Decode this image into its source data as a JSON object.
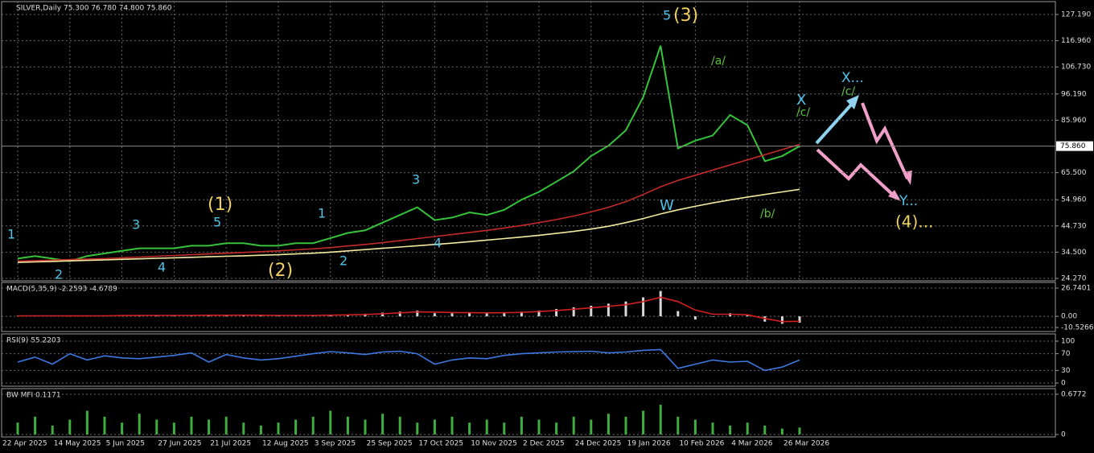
{
  "chart_data": [
    {
      "type": "line",
      "title": "SILVER,Daily  75.300 76.780 74.800 75.860",
      "ylim": [
        24.27,
        127.19
      ],
      "yticks": [
        {
          "value": 127.19,
          "label": "127.190"
        },
        {
          "value": 116.96,
          "label": "116.960"
        },
        {
          "value": 106.73,
          "label": "106.730"
        },
        {
          "value": 96.19,
          "label": "96.190"
        },
        {
          "value": 85.96,
          "label": "85.960"
        },
        {
          "value": 65.5,
          "label": "65.500"
        },
        {
          "value": 54.96,
          "label": "54.960"
        },
        {
          "value": 44.73,
          "label": "44.730"
        },
        {
          "value": 34.5,
          "label": "34.500"
        },
        {
          "value": 24.27,
          "label": "24.270"
        }
      ],
      "last_price": {
        "value": 75.86,
        "label": "75.860"
      },
      "grid": true,
      "series": [
        {
          "color": "#35c43a",
          "values": [
            32,
            33,
            32,
            31,
            33,
            34,
            35,
            36,
            36,
            36,
            37,
            37,
            38,
            38,
            37,
            37,
            38,
            38,
            40,
            42,
            43,
            46,
            49,
            52,
            47,
            48,
            50,
            49,
            51,
            55,
            58,
            62,
            66,
            72,
            76,
            82,
            95,
            115,
            75,
            78,
            80,
            88,
            84,
            70,
            72,
            75.86
          ]
        },
        {
          "color": "#c42a2a",
          "values": [
            31,
            31.2,
            31.4,
            31.6,
            31.8,
            32,
            32.3,
            32.6,
            32.9,
            33.2,
            33.5,
            33.8,
            34.1,
            34.4,
            34.7,
            35,
            35.4,
            35.8,
            36.3,
            36.9,
            37.5,
            38.2,
            39,
            39.8,
            40.6,
            41.4,
            42.2,
            43,
            43.9,
            44.9,
            46,
            47.2,
            48.6,
            50.2,
            52,
            54.2,
            57,
            60,
            62.5,
            64.5,
            66.5,
            68.5,
            70.5,
            72.5,
            74.5,
            76.5
          ]
        },
        {
          "color": "#f3eaa0",
          "values": [
            30.5,
            30.7,
            30.9,
            31.1,
            31.3,
            31.5,
            31.7,
            31.9,
            32.1,
            32.3,
            32.5,
            32.7,
            32.9,
            33.1,
            33.3,
            33.5,
            33.8,
            34.1,
            34.5,
            35,
            35.5,
            36,
            36.5,
            37,
            37.5,
            38,
            38.6,
            39.2,
            39.8,
            40.4,
            41.1,
            41.8,
            42.6,
            43.5,
            44.6,
            46,
            47.6,
            49.4,
            51,
            52.4,
            53.7,
            54.9,
            56,
            57,
            58,
            59
          ]
        }
      ],
      "annotations": [
        "(1)",
        "(2)",
        "(3)",
        "(4)...",
        "W",
        "X",
        "X...",
        "Y...",
        "1",
        "2",
        "3",
        "4",
        "5",
        "1",
        "2",
        "3",
        "4",
        "5",
        "/a/",
        "/b/",
        "/c/",
        "/c/"
      ]
    },
    {
      "type": "bar",
      "title": "MACD(5,35,9) -2.2593 -4.6789",
      "ylim": [
        -10.5266,
        26.7401
      ],
      "yticks": [
        26.7401,
        {
          "value": 0,
          "label": "0.00"
        },
        -10.5266
      ],
      "series": [
        {
          "color": "#d8d8d8",
          "values": [
            0.5,
            0.6,
            0.4,
            0.2,
            0.5,
            0.7,
            0.9,
            1,
            1,
            0.9,
            1,
            1,
            1.2,
            1.1,
            0.8,
            0.7,
            0.9,
            1,
            1.5,
            2,
            2.5,
            3.5,
            4.5,
            5.5,
            3,
            3,
            3.5,
            3,
            3.5,
            4.5,
            5.5,
            7,
            8.5,
            10,
            12,
            14,
            18,
            24,
            5,
            -3,
            0,
            3,
            1,
            -5,
            -7,
            -6
          ]
        },
        {
          "type": "line",
          "color": "#d02020",
          "values": [
            0.4,
            0.5,
            0.5,
            0.4,
            0.4,
            0.5,
            0.7,
            0.8,
            0.9,
            0.9,
            0.9,
            1,
            1,
            1.1,
            1,
            0.9,
            0.9,
            0.9,
            1.1,
            1.4,
            1.8,
            2.5,
            3.3,
            4.2,
            4,
            3.6,
            3.5,
            3.3,
            3.4,
            3.8,
            4.5,
            5.5,
            6.7,
            8,
            9.5,
            11,
            14,
            18,
            14,
            6,
            2,
            2,
            1.5,
            -2,
            -5,
            -4.7
          ]
        }
      ]
    },
    {
      "type": "line",
      "title": "RSI(9) 55.2203",
      "ylim": [
        0,
        100
      ],
      "yticks": [
        100,
        70,
        30,
        0
      ],
      "series": [
        {
          "color": "#3d78e0",
          "values": [
            50,
            62,
            45,
            70,
            55,
            65,
            60,
            58,
            62,
            66,
            72,
            50,
            68,
            60,
            55,
            58,
            64,
            70,
            75,
            72,
            68,
            74,
            76,
            70,
            45,
            55,
            60,
            58,
            66,
            70,
            72,
            74,
            75,
            76,
            72,
            74,
            78,
            80,
            35,
            45,
            55,
            50,
            52,
            30,
            38,
            55
          ]
        }
      ]
    },
    {
      "type": "bar",
      "title": "BW MFI 0.1171",
      "ylim": [
        0,
        0.6772
      ],
      "yticks": [
        0.6772,
        0
      ],
      "categories": [
        "22 Apr 2025",
        null,
        null,
        "14 May 2025",
        null,
        null,
        "5 Jun 2025",
        null,
        null,
        "27 Jun 2025",
        null,
        null,
        "21 Jul 2025",
        null,
        null,
        "12 Aug 2025",
        null,
        null,
        "3 Sep 2025",
        null,
        null,
        "25 Sep 2025",
        null,
        null,
        "17 Oct 2025",
        null,
        null,
        "10 Nov 2025",
        null,
        null,
        "2 Dec 2025",
        null,
        null,
        "24 Dec 2025",
        null,
        null,
        "19 Jan 2026",
        null,
        null,
        "10 Feb 2026",
        null,
        null,
        "4 Mar 2026",
        null,
        null,
        "26 Mar 2026"
      ],
      "series": [
        {
          "color": "#3fae3f",
          "values": [
            0.2,
            0.3,
            0.15,
            0.25,
            0.4,
            0.3,
            0.2,
            0.35,
            0.25,
            0.2,
            0.3,
            0.25,
            0.3,
            0.2,
            0.15,
            0.2,
            0.25,
            0.3,
            0.4,
            0.3,
            0.25,
            0.35,
            0.3,
            0.2,
            0.25,
            0.3,
            0.2,
            0.25,
            0.2,
            0.3,
            0.25,
            0.2,
            0.3,
            0.25,
            0.35,
            0.3,
            0.4,
            0.5,
            0.3,
            0.25,
            0.2,
            0.15,
            0.2,
            0.15,
            0.1,
            0.1171
          ]
        }
      ]
    }
  ]
}
